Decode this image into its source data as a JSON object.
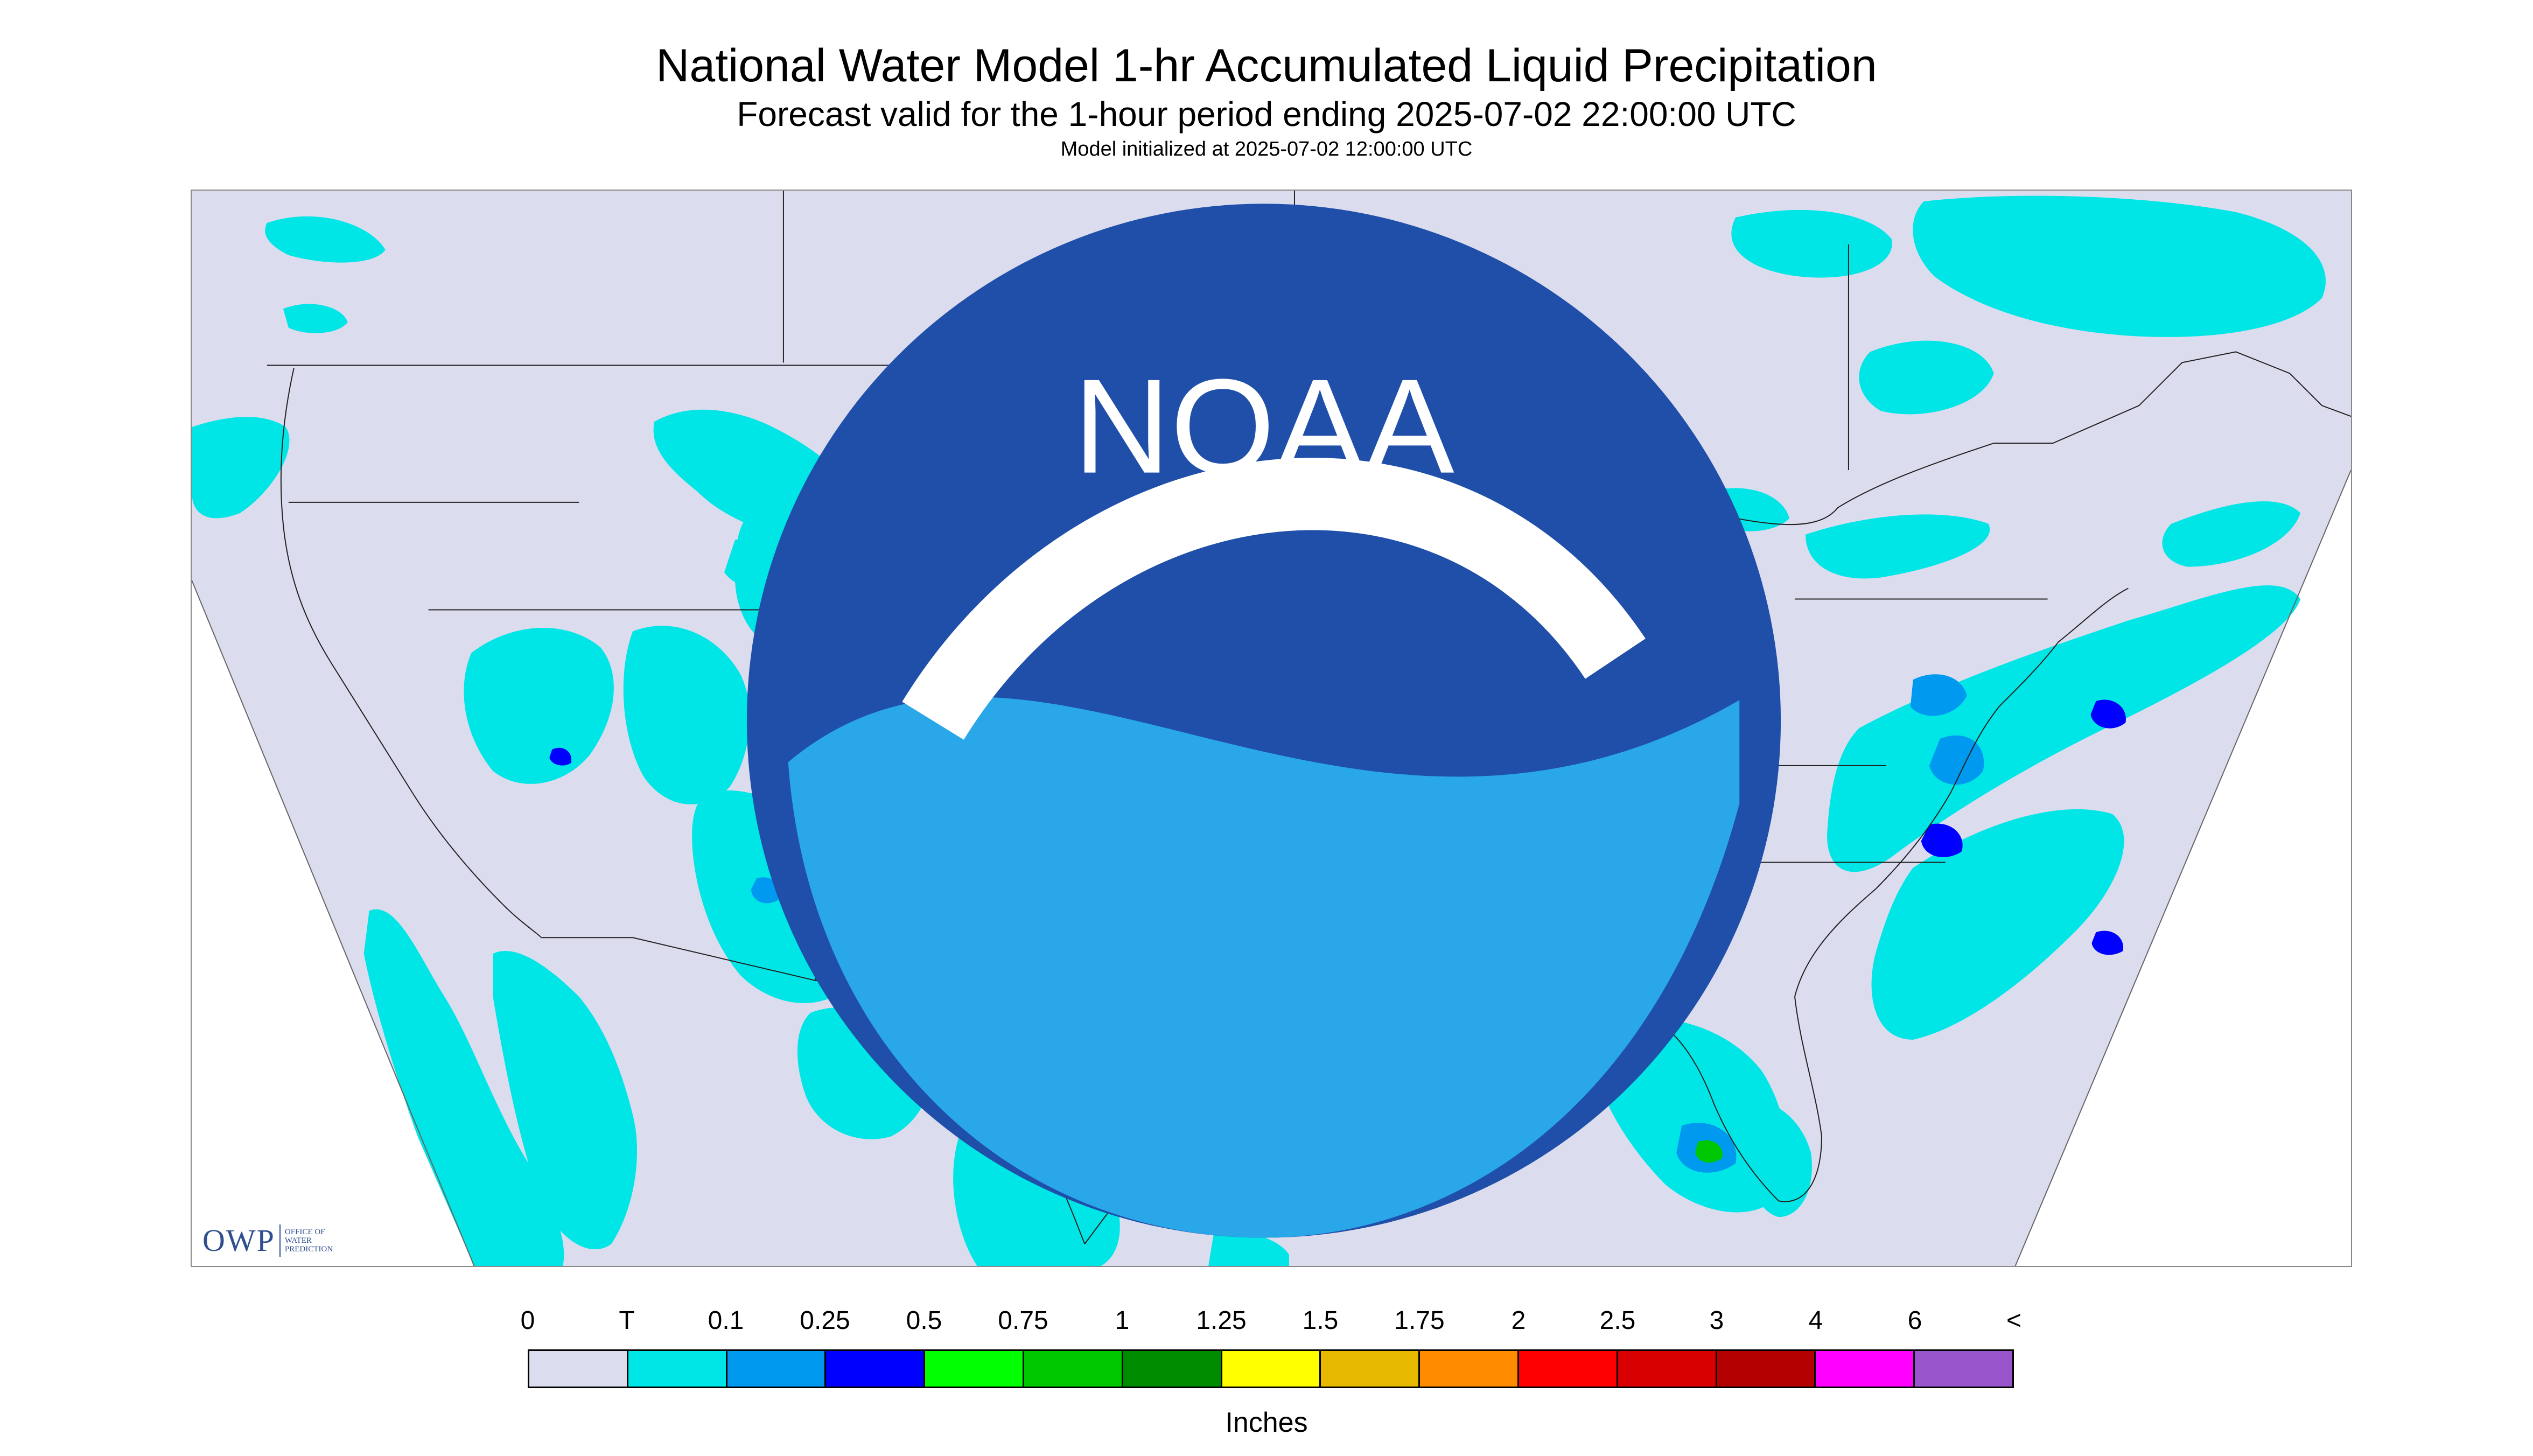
{
  "header": {
    "title": "National Water Model 1-hr Accumulated Liquid Precipitation",
    "subtitle": "Forecast valid for the 1-hour period ending 2025-07-02 22:00:00 UTC",
    "init": "Model initialized at 2025-07-02 12:00:00 UTC"
  },
  "map": {
    "background_color": "#dcdcef",
    "outside_color": "#ffffff",
    "border_color": "#222222",
    "dominant_precip_color": "#00e5e5",
    "light_precip_color": "#0099f0",
    "moderate_precip_color": "#0000ff"
  },
  "logos": {
    "owp_letters": "OWP",
    "owp_line1": "Office of",
    "owp_line2": "Water",
    "owp_line3": "Prediction",
    "noaa_text": "NOAA"
  },
  "legend": {
    "ticks": [
      "0",
      "T",
      "0.1",
      "0.25",
      "0.5",
      "0.75",
      "1",
      "1.25",
      "1.5",
      "1.75",
      "2",
      "2.5",
      "3",
      "4",
      "6",
      "<"
    ],
    "colors": [
      "#dcdcef",
      "#00e5e5",
      "#0099f0",
      "#0000ff",
      "#00ff00",
      "#00c800",
      "#008c00",
      "#ffff00",
      "#e6b800",
      "#ff8c00",
      "#ff0000",
      "#d80000",
      "#b40000",
      "#ff00ff",
      "#9955cc"
    ],
    "unit": "Inches"
  }
}
